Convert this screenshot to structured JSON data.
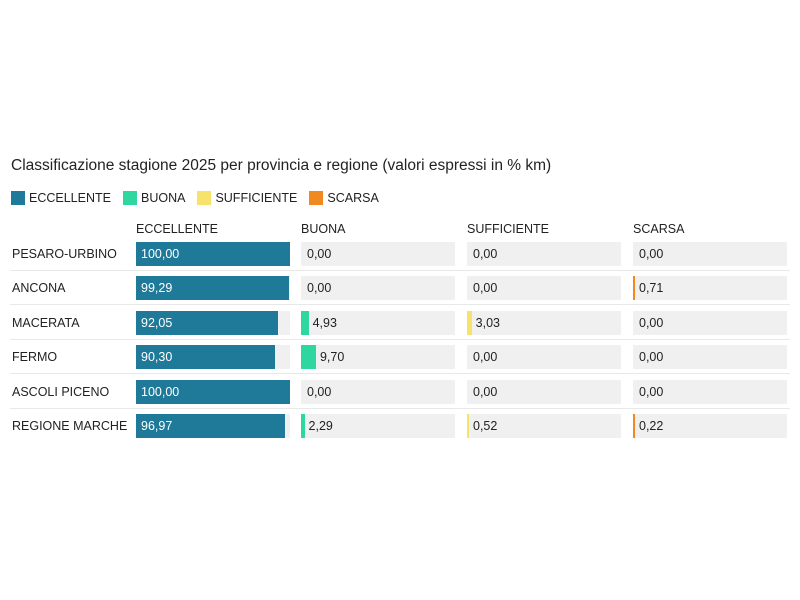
{
  "chart_data": {
    "type": "table",
    "title": "Classificazione stagione 2025 per provincia e regione (valori espressi in % km)",
    "legend": [
      {
        "label": "ECCELLENTE",
        "color": "#1f7a99"
      },
      {
        "label": "BUONA",
        "color": "#2ed6a0"
      },
      {
        "label": "SUFFICIENTE",
        "color": "#f7e26b"
      },
      {
        "label": "SCARSA",
        "color": "#f0891f"
      }
    ],
    "columns": [
      "ECCELLENTE",
      "BUONA",
      "SUFFICIENTE",
      "SCARSA"
    ],
    "value_range": [
      0,
      100
    ],
    "rows": [
      {
        "label": "PESARO-URBINO",
        "values": [
          100.0,
          0.0,
          0.0,
          0.0
        ],
        "display": [
          "100,00",
          "0,00",
          "0,00",
          "0,00"
        ]
      },
      {
        "label": "ANCONA",
        "values": [
          99.29,
          0.0,
          0.0,
          0.71
        ],
        "display": [
          "99,29",
          "0,00",
          "0,00",
          "0,71"
        ]
      },
      {
        "label": "MACERATA",
        "values": [
          92.05,
          4.93,
          3.03,
          0.0
        ],
        "display": [
          "92,05",
          "4,93",
          "3,03",
          "0,00"
        ]
      },
      {
        "label": "FERMO",
        "values": [
          90.3,
          9.7,
          0.0,
          0.0
        ],
        "display": [
          "90,30",
          "9,70",
          "0,00",
          "0,00"
        ]
      },
      {
        "label": "ASCOLI PICENO",
        "values": [
          100.0,
          0.0,
          0.0,
          0.0
        ],
        "display": [
          "100,00",
          "0,00",
          "0,00",
          "0,00"
        ]
      },
      {
        "label": "REGIONE MARCHE",
        "values": [
          96.97,
          2.29,
          0.52,
          0.22
        ],
        "display": [
          "96,97",
          "2,29",
          "0,52",
          "0,22"
        ]
      }
    ]
  }
}
